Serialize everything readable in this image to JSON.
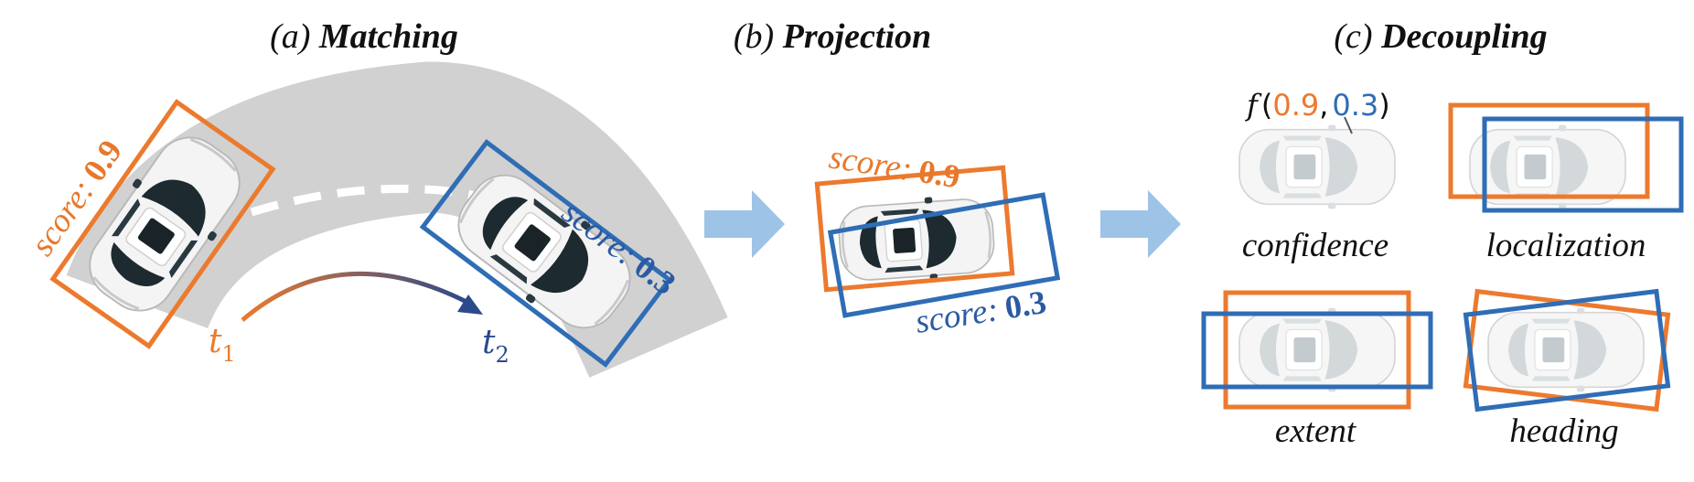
{
  "colors": {
    "orange": "#ec7a2e",
    "blue": "#2f6db5",
    "road_gray": "#c8c8c8",
    "arrow_light_blue": "#9dc3e6",
    "dark_blue_text": "#2b4a8a"
  },
  "panels": [
    {
      "prefix": "(a) ",
      "title": "Matching"
    },
    {
      "prefix": "(b) ",
      "title": "Projection"
    },
    {
      "prefix": "(c) ",
      "title": "Decoupling"
    }
  ],
  "matching": {
    "score_word": "score:",
    "score_t1": "0.9",
    "score_t2": "0.3",
    "t1_base": "t",
    "t1_sub": "1",
    "t2_base": "t",
    "t2_sub": "2"
  },
  "projection": {
    "score_word": "score:",
    "score_t1": "0.9",
    "score_t2": "0.3"
  },
  "decoupling": {
    "formula_fn": "f",
    "formula_open": "(",
    "formula_a": "0.9",
    "formula_comma": ",",
    "formula_b": "0.3",
    "formula_close": ")",
    "labels": [
      "confidence",
      "localization",
      "extent",
      "heading"
    ]
  },
  "icons": [
    "car-icon",
    "arrow-right-icon",
    "curved-arrow-icon"
  ]
}
